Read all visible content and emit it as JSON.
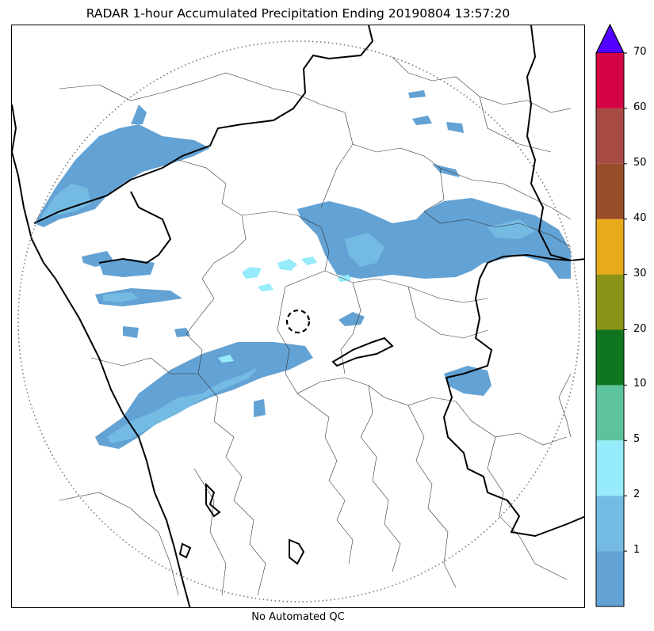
{
  "title": "RADAR 1-hour Accumulated Precipitation Ending 20190804 13:57:20",
  "footer": "No Automated QC",
  "colorbar": {
    "bins": [
      {
        "label": "1",
        "color": "#63a2d4"
      },
      {
        "label": "2",
        "color": "#74bbe3"
      },
      {
        "label": "5",
        "color": "#96ecfb"
      },
      {
        "label": "10",
        "color": "#5cc39c"
      },
      {
        "label": "20",
        "color": "#10751f"
      },
      {
        "label": "30",
        "color": "#8b9417"
      },
      {
        "label": "40",
        "color": "#e7aa1b"
      },
      {
        "label": "50",
        "color": "#994d29"
      },
      {
        "label": "60",
        "color": "#a74a43"
      },
      {
        "label": "70",
        "color": "#d40444"
      }
    ],
    "extend_color": "#5200ff"
  }
}
